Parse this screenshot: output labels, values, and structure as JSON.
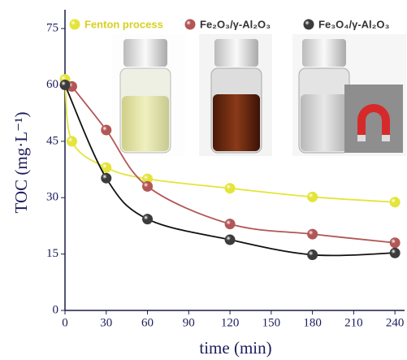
{
  "chart_data": {
    "type": "line",
    "x_label": "time (min)",
    "y_label": "TOC (mg·L⁻¹)",
    "xlim": [
      0,
      247
    ],
    "ylim": [
      0,
      80
    ],
    "xticks": [
      0,
      30,
      60,
      90,
      120,
      150,
      180,
      210,
      240
    ],
    "yticks": [
      0,
      15,
      30,
      45,
      60,
      75
    ],
    "series": [
      {
        "name": "Fenton process",
        "color": "#e4e43a",
        "x": [
          0,
          5,
          30,
          60,
          120,
          180,
          240
        ],
        "values": [
          61.5,
          45,
          38,
          35,
          32.5,
          30.2,
          28.8
        ]
      },
      {
        "name": "Fe₂O₃/γ-Al₂O₃",
        "color": "#b25656",
        "x": [
          5,
          30,
          60,
          120,
          180,
          240
        ],
        "values": [
          59.6,
          48,
          33,
          23,
          20.3,
          18
        ]
      },
      {
        "name": "Fe₃O₄/γ-Al₂O₃",
        "color": "#3c3c3c",
        "x": [
          0,
          30,
          60,
          120,
          180,
          240
        ],
        "values": [
          60,
          35.2,
          24.3,
          18.8,
          14.8,
          15.3
        ]
      }
    ]
  }
}
